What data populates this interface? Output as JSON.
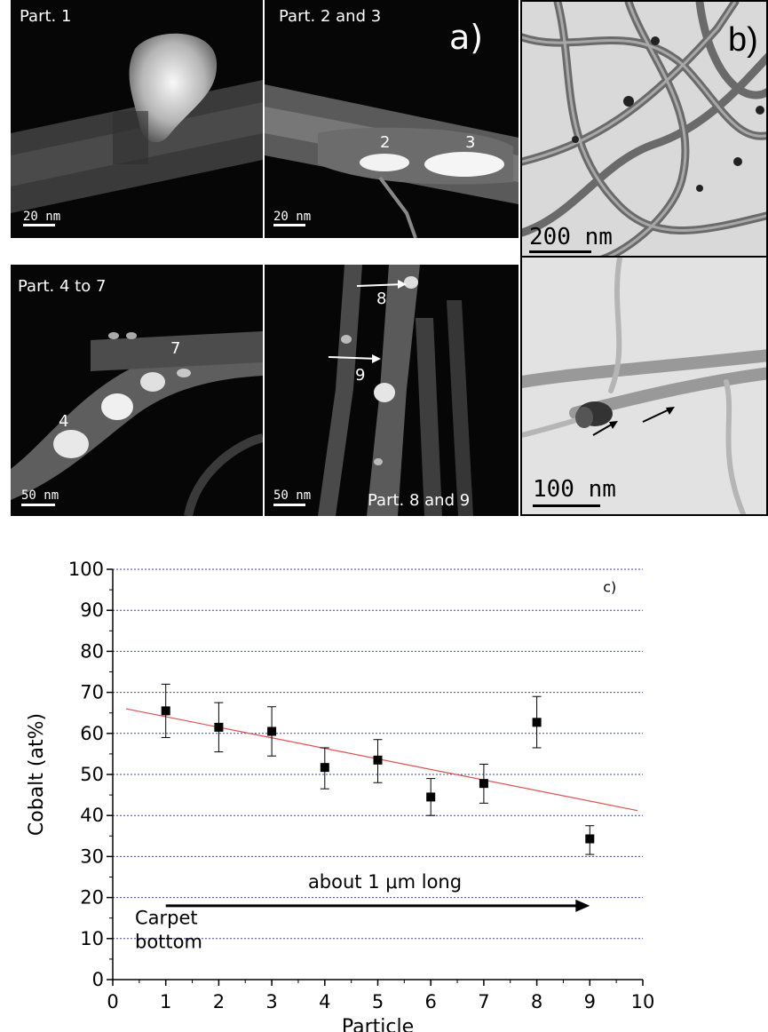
{
  "panel_a": {
    "letter": "a)",
    "tiles": [
      {
        "label": "Part. 1",
        "scale": "20 nm"
      },
      {
        "label": "Part. 2 and 3",
        "scale": "20 nm",
        "markers": [
          "2",
          "3"
        ]
      },
      {
        "label": "Part. 4 to 7",
        "scale": "50 nm",
        "markers": [
          "4",
          "7"
        ]
      },
      {
        "label": "Part. 8 and 9",
        "scale": "50 nm",
        "markers": [
          "8",
          "9"
        ]
      }
    ]
  },
  "panel_b": {
    "letter": "b)",
    "top_scale": "200 nm",
    "bottom_scale": "100 nm"
  },
  "chart_data": {
    "type": "scatter",
    "panel_letter": "c)",
    "xlabel": "Particle",
    "ylabel": "Cobalt (at%)",
    "xlim": [
      0,
      10
    ],
    "ylim": [
      0,
      100
    ],
    "xticks": [
      "0",
      "1",
      "2",
      "3",
      "4",
      "5",
      "6",
      "7",
      "8",
      "9",
      "10"
    ],
    "yticks": [
      "0",
      "10",
      "20",
      "30",
      "40",
      "50",
      "60",
      "70",
      "80",
      "90",
      "100"
    ],
    "grid": "horizontal dotted blue",
    "x": [
      1,
      2,
      3,
      4,
      5,
      6,
      7,
      8,
      9
    ],
    "y": [
      65.5,
      61.5,
      60.5,
      51.7,
      53.5,
      44.5,
      47.8,
      62.7,
      34.3
    ],
    "err_low": [
      59,
      55.5,
      54.5,
      46.5,
      48,
      40,
      43,
      56.5,
      30.5
    ],
    "err_high": [
      72,
      67.5,
      66.5,
      56.5,
      58.5,
      49,
      52.5,
      69,
      37.5
    ],
    "trend": {
      "x": [
        0.25,
        9.9
      ],
      "y": [
        66,
        41.2
      ],
      "color": "#e05050"
    },
    "arrow": {
      "x_start": 1,
      "x_end": 9,
      "y": 18,
      "label": "about 1 μm long"
    },
    "annotation": [
      "Carpet",
      "bottom"
    ],
    "colors": {
      "marker": "#000000",
      "grid": "#3a3acc",
      "trend": "#e05050"
    }
  }
}
